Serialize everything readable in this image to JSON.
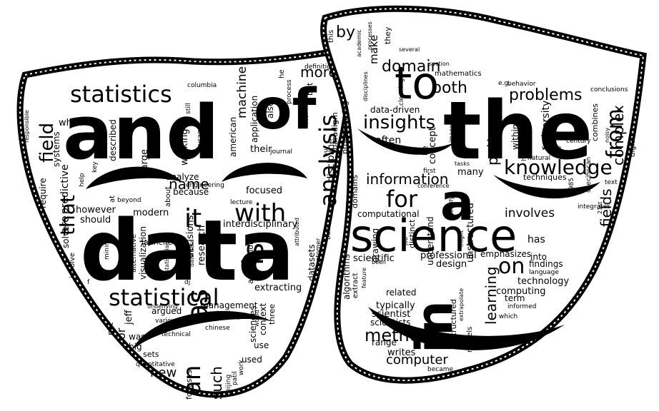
{
  "left_mask_words": [
    "and",
    "data",
    "statistics",
    "statistical",
    "field",
    "that",
    "of",
    "analysis",
    "it",
    "with",
    "is",
    "as",
    "an",
    "new",
    "such",
    "more",
    "machine",
    "name",
    "use",
    "used",
    "sets",
    "quantitative",
    "beijing",
    "patil",
    "work",
    "focuses",
    "or",
    "was",
    "big",
    "not",
    "jeff",
    "argued",
    "various",
    "technical",
    "chinese",
    "management",
    "analyzing",
    "extracting",
    "sciences",
    "context",
    "three",
    "datasets",
    "customer",
    "discipline",
    "build",
    "interdisciplinary",
    "focused",
    "develop",
    "lecture",
    "modern",
    "about",
    "because",
    "analyze",
    "engineering",
    "decisions",
    "research",
    "association",
    "marketing",
    "american",
    "application",
    "also",
    "their",
    "journal",
    "paradigm",
    "programming",
    "later",
    "but",
    "definition",
    "process",
    "he",
    "columbia",
    "still",
    "usage",
    "working",
    "uses",
    "large",
    "described",
    "these",
    "while",
    "systems",
    "require",
    "predictive",
    "key",
    "help",
    "are",
    "however",
    "should",
    "solve",
    "involve",
    "mining",
    "alternative",
    "visualization",
    "launched",
    "at",
    "beyond",
    "responsible",
    "f",
    "dj",
    "user",
    "would",
    "attributed",
    "underlying",
    "statistician",
    "data.data",
    "wu"
  ],
  "right_mask_words": [
    "the",
    "to",
    "science",
    "in",
    "a",
    "for",
    "knowledge",
    "from",
    "on",
    "methods",
    "insights",
    "domain",
    "both",
    "problems",
    "patterns",
    "complex",
    "fields",
    "learning",
    "information",
    "involves",
    "technology",
    "computing",
    "computer",
    "writes",
    "range",
    "scientist",
    "scientists",
    "typically",
    "related",
    "algorithms",
    "extract",
    "drawing",
    "understand",
    "unstructured",
    "scientific",
    "professional",
    "design",
    "computational",
    "domains",
    "has",
    "emphasizes",
    "into",
    "findings",
    "language",
    "term",
    "models",
    "structured",
    "extrapolate",
    "became",
    "which",
    "informed",
    "often",
    "data-driven",
    "make",
    "by",
    "this",
    "academic",
    "disciplines",
    "processes",
    "they",
    "cleaning",
    "mathematics",
    "e.g.",
    "behavior",
    "conclusions",
    "noisy",
    "digital",
    "combines",
    "century",
    "university",
    "within",
    "hypotheses",
    "natural",
    "1985",
    "21st",
    "text",
    "specificcan",
    "integrates",
    "techniques",
    "many",
    "first",
    "tasks",
    "job",
    "might",
    "identify",
    "distinct",
    "feature",
    "been",
    "section",
    "conference",
    "images",
    "concept",
    "be",
    "within",
    "several",
    "academy"
  ]
}
